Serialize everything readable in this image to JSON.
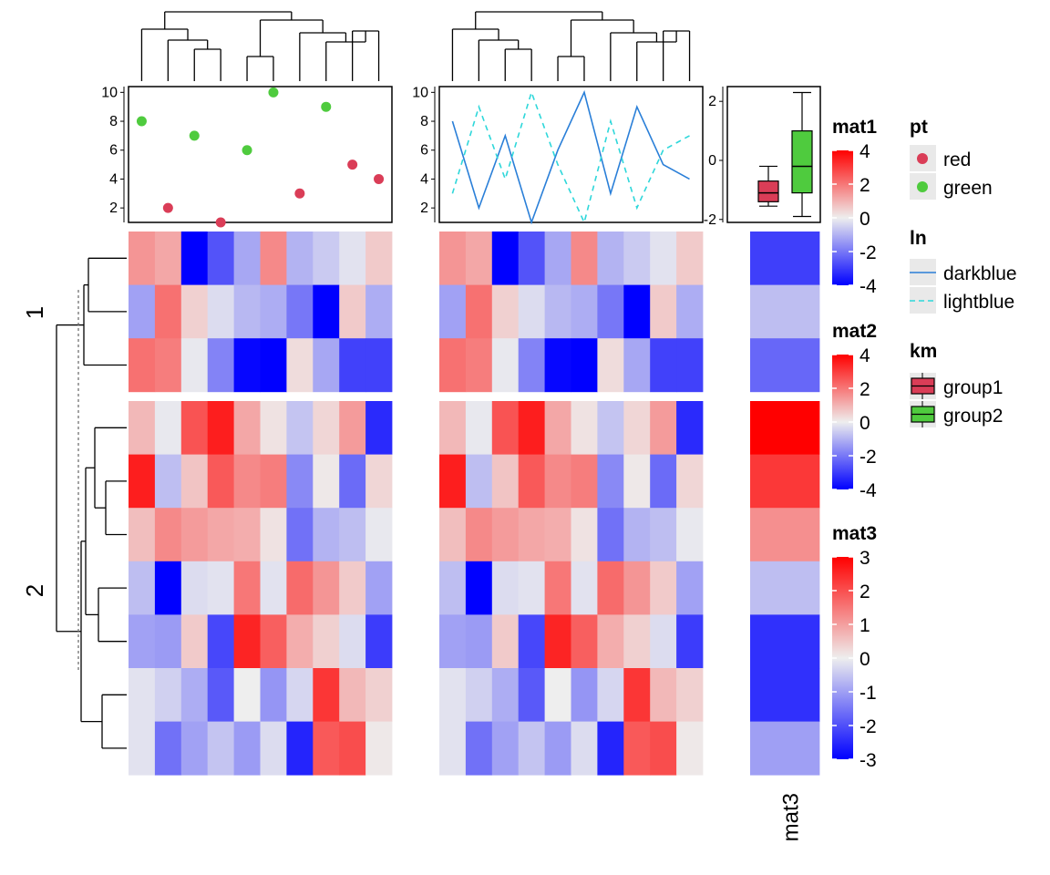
{
  "chart_data": [
    {
      "type": "heatmap",
      "title": "",
      "columns": 10,
      "row_split_labels": [
        "1",
        "2"
      ],
      "row_split_sizes": [
        3,
        7
      ],
      "values": [
        [
          1.5,
          1.2,
          -4.3,
          -2.6,
          -1.2,
          1.7,
          -1.0,
          -0.6,
          -0.2,
          0.6
        ],
        [
          -1.3,
          2.1,
          0.5,
          -0.3,
          -0.9,
          -1.1,
          -2.0,
          -4.2,
          0.6,
          -1.1
        ],
        [
          2.1,
          1.9,
          -0.1,
          -1.8,
          -3.9,
          -4.2,
          0.3,
          -1.2,
          -2.9,
          -2.9
        ],
        [
          0.9,
          -0.1,
          2.6,
          3.5,
          1.2,
          0.2,
          -0.7,
          0.4,
          1.4,
          -3.3
        ],
        [
          3.5,
          -0.8,
          0.7,
          2.5,
          1.7,
          1.9,
          -1.7,
          0.1,
          -2.2,
          0.4
        ],
        [
          0.8,
          1.7,
          1.4,
          1.2,
          1.1,
          0.2,
          -2.1,
          -1.0,
          -0.8,
          -0.1
        ],
        [
          -0.8,
          -4.3,
          -0.3,
          -0.2,
          2.0,
          -0.2,
          2.2,
          1.5,
          0.6,
          -1.3
        ],
        [
          -1.3,
          -1.4,
          0.6,
          -2.8,
          3.4,
          2.4,
          1.1,
          0.5,
          -0.3,
          -3.0
        ],
        [
          -0.2,
          -0.5,
          -1.1,
          -2.5,
          0.0,
          -1.5,
          -0.4,
          3.1,
          0.9,
          0.5
        ],
        [
          -0.2,
          -2.1,
          -1.3,
          -0.7,
          -1.4,
          -0.3,
          -3.4,
          2.5,
          2.7,
          0.1
        ]
      ]
    },
    {
      "type": "heatmap",
      "title": "",
      "columns": 10,
      "values": [
        [
          1.5,
          1.2,
          -4.3,
          -2.6,
          -1.2,
          1.7,
          -1.0,
          -0.6,
          -0.2,
          0.6
        ],
        [
          -1.3,
          2.1,
          0.5,
          -0.3,
          -0.9,
          -1.1,
          -2.0,
          -4.2,
          0.6,
          -1.1
        ],
        [
          2.1,
          1.9,
          -0.1,
          -1.8,
          -3.9,
          -4.2,
          0.3,
          -1.2,
          -2.9,
          -2.9
        ],
        [
          0.9,
          -0.1,
          2.6,
          3.5,
          1.2,
          0.2,
          -0.7,
          0.4,
          1.4,
          -3.3
        ],
        [
          3.5,
          -0.8,
          0.7,
          2.5,
          1.7,
          1.9,
          -1.7,
          0.1,
          -2.2,
          0.4
        ],
        [
          0.8,
          1.7,
          1.4,
          1.2,
          1.1,
          0.2,
          -2.1,
          -1.0,
          -0.8,
          -0.1
        ],
        [
          -0.8,
          -4.3,
          -0.3,
          -0.2,
          2.0,
          -0.2,
          2.2,
          1.5,
          0.6,
          -1.3
        ],
        [
          -1.3,
          -1.4,
          0.6,
          -2.8,
          3.4,
          2.4,
          1.1,
          0.5,
          -0.3,
          -3.0
        ],
        [
          -0.2,
          -0.5,
          -1.1,
          -2.5,
          0.0,
          -1.5,
          -0.4,
          3.1,
          0.9,
          0.5
        ],
        [
          -0.2,
          -2.1,
          -1.3,
          -0.7,
          -1.4,
          -0.3,
          -3.4,
          2.5,
          2.7,
          0.1
        ]
      ]
    },
    {
      "type": "heatmap",
      "title": "",
      "column_labels": [
        "mat3"
      ],
      "values": [
        [
          -2.2
        ],
        [
          -0.6
        ],
        [
          -1.7
        ],
        [
          3.1
        ],
        [
          2.3
        ],
        [
          1.2
        ],
        [
          -0.6
        ],
        [
          -2.4
        ],
        [
          -2.4
        ],
        [
          -1.0
        ]
      ]
    },
    {
      "type": "scatter",
      "title": "",
      "x": [
        1,
        2,
        3,
        4,
        5,
        6,
        7,
        8,
        9,
        10
      ],
      "y": [
        8,
        2,
        7,
        1,
        6,
        10,
        3,
        9,
        5,
        4
      ],
      "point_group": [
        "green",
        "red",
        "green",
        "red",
        "green",
        "green",
        "red",
        "green",
        "red",
        "red"
      ],
      "ylim": [
        1,
        10.4
      ],
      "yticks": [
        2,
        4,
        6,
        8,
        10
      ]
    },
    {
      "type": "line",
      "title": "",
      "x": [
        1,
        2,
        3,
        4,
        5,
        6,
        7,
        8,
        9,
        10
      ],
      "series": [
        {
          "name": "darkblue",
          "values": [
            8,
            2,
            7,
            1,
            6,
            10,
            3,
            9,
            5,
            4
          ]
        },
        {
          "name": "lightblue",
          "values": [
            3,
            9,
            4,
            10,
            5,
            1,
            8,
            2,
            6,
            7
          ]
        }
      ],
      "ylim": [
        1,
        10.4
      ],
      "yticks": [
        2,
        4,
        6,
        8,
        10
      ]
    },
    {
      "type": "box",
      "title": "",
      "groups": [
        "group1",
        "group2"
      ],
      "boxes": [
        {
          "name": "group1",
          "min": -1.55,
          "q1": -1.4,
          "median": -1.1,
          "q3": -0.7,
          "max": -0.2
        },
        {
          "name": "group2",
          "min": -1.9,
          "q1": -1.1,
          "median": -0.2,
          "q3": 1.0,
          "max": 2.3
        }
      ],
      "ylim": [
        -2.1,
        2.5
      ],
      "yticks": [
        -2,
        0,
        2
      ]
    }
  ],
  "legends": {
    "mat1": {
      "title": "mat1",
      "ticks": [
        "4",
        "2",
        "0",
        "-2",
        "-4"
      ],
      "range": [
        -4,
        4
      ]
    },
    "mat2": {
      "title": "mat2",
      "ticks": [
        "4",
        "2",
        "0",
        "-2",
        "-4"
      ],
      "range": [
        -4,
        4
      ]
    },
    "mat3": {
      "title": "mat3",
      "ticks": [
        "3",
        "2",
        "1",
        "0",
        "-1",
        "-2",
        "-3"
      ],
      "range": [
        -3,
        3
      ]
    },
    "pt": {
      "title": "pt",
      "items": [
        {
          "label": "red",
          "color": "#DA3D57"
        },
        {
          "label": "green",
          "color": "#4FCB3E"
        }
      ]
    },
    "ln": {
      "title": "ln",
      "items": [
        {
          "label": "darkblue",
          "color": "#2A7FD8",
          "dash": false
        },
        {
          "label": "lightblue",
          "color": "#2ED7DA",
          "dash": true
        }
      ]
    },
    "km": {
      "title": "km",
      "items": [
        {
          "label": "group1",
          "color": "#DA3D57"
        },
        {
          "label": "group2",
          "color": "#4FCB3E"
        }
      ]
    }
  },
  "colors": {
    "low": "#0000FF",
    "mid": "#EEEEEE",
    "high": "#FF0000",
    "red_points": "#DA3D57",
    "green_points": "#4FCB3E",
    "darkblue_line": "#2A7FD8",
    "lightblue_line": "#2ED7DA"
  }
}
